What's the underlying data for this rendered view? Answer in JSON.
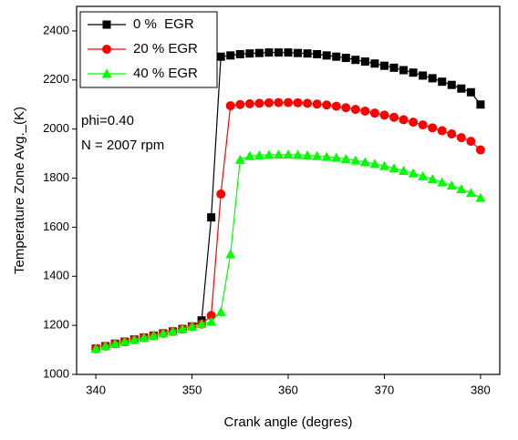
{
  "chart_data": {
    "type": "line",
    "x_label": "Crank angle (degres)",
    "y_label": "Temperature Zone Avg._(K)",
    "annotations": [
      "phi=0.40",
      "N = 2007 rpm"
    ],
    "x": [
      340,
      341,
      342,
      343,
      344,
      345,
      346,
      347,
      348,
      349,
      350,
      351,
      352,
      353,
      354,
      355,
      356,
      357,
      358,
      359,
      360,
      361,
      362,
      363,
      364,
      365,
      366,
      367,
      368,
      369,
      370,
      371,
      372,
      373,
      374,
      375,
      376,
      377,
      378,
      379,
      380
    ],
    "series": [
      {
        "name": "0 %  EGR",
        "color": "#000000",
        "marker": "square",
        "values": [
          1105,
          1115,
          1125,
          1133,
          1142,
          1150,
          1158,
          1167,
          1175,
          1185,
          1195,
          1220,
          1640,
          2295,
          2300,
          2305,
          2308,
          2310,
          2312,
          2312,
          2312,
          2310,
          2308,
          2305,
          2300,
          2295,
          2290,
          2282,
          2275,
          2267,
          2258,
          2250,
          2240,
          2230,
          2218,
          2207,
          2193,
          2180,
          2165,
          2150,
          2100
        ]
      },
      {
        "name": "20 % EGR",
        "color": "#ff0000",
        "marker": "circle",
        "values": [
          1105,
          1115,
          1125,
          1133,
          1142,
          1150,
          1158,
          1167,
          1175,
          1185,
          1195,
          1205,
          1240,
          1735,
          2095,
          2100,
          2103,
          2105,
          2107,
          2108,
          2108,
          2107,
          2105,
          2102,
          2098,
          2093,
          2087,
          2080,
          2073,
          2065,
          2057,
          2048,
          2038,
          2028,
          2017,
          2005,
          1993,
          1980,
          1965,
          1950,
          1915
        ]
      },
      {
        "name": "40 % EGR",
        "color": "#00ff00",
        "marker": "triangle",
        "values": [
          1105,
          1115,
          1125,
          1133,
          1142,
          1150,
          1158,
          1167,
          1175,
          1185,
          1195,
          1205,
          1215,
          1255,
          1490,
          1875,
          1890,
          1893,
          1895,
          1896,
          1896,
          1895,
          1893,
          1890,
          1887,
          1883,
          1878,
          1872,
          1865,
          1858,
          1850,
          1840,
          1830,
          1820,
          1808,
          1796,
          1783,
          1770,
          1755,
          1740,
          1720
        ]
      }
    ],
    "xlim": [
      338,
      382
    ],
    "xticks": [
      340,
      350,
      360,
      370,
      380
    ],
    "ylim": [
      1000,
      2500
    ],
    "yticks": [
      1000,
      1200,
      1400,
      1600,
      1800,
      2000,
      2200,
      2400
    ],
    "legend": "upper left",
    "grid": false
  }
}
